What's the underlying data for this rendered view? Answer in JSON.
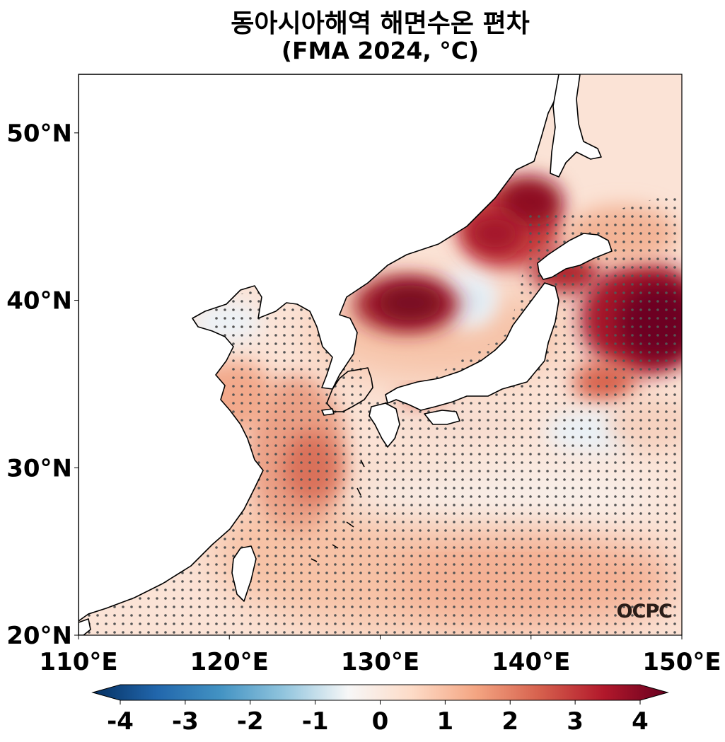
{
  "title": "동아시아해역 해면수온 편차",
  "subtitle": "(FMA 2024, °C)",
  "logo": "OCPC",
  "map": {
    "extent": {
      "lon": [
        110,
        150
      ],
      "lat": [
        20,
        53.5
      ]
    },
    "x_ticks": [
      {
        "value": 110,
        "label": "110°E"
      },
      {
        "value": 120,
        "label": "120°E"
      },
      {
        "value": 130,
        "label": "130°E"
      },
      {
        "value": 140,
        "label": "140°E"
      },
      {
        "value": 150,
        "label": "150°E"
      }
    ],
    "y_ticks": [
      {
        "value": 20,
        "label": "20°N"
      },
      {
        "value": 30,
        "label": "30°N"
      },
      {
        "value": 40,
        "label": "40°N"
      },
      {
        "value": 50,
        "label": "50°N"
      }
    ],
    "stipple_color": "#555555",
    "anomaly_hotspots": [
      {
        "lon": 140.5,
        "lat": 45.8,
        "value": 4.0
      },
      {
        "lon": 137.5,
        "lat": 43.5,
        "value": 3.0
      },
      {
        "lon": 131.5,
        "lat": 39.8,
        "value": 4.0
      },
      {
        "lon": 143.0,
        "lat": 41.5,
        "value": 3.5
      },
      {
        "lon": 147.5,
        "lat": 38.5,
        "value": 4.0
      },
      {
        "lon": 125.5,
        "lat": 30.0,
        "value": 2.3
      },
      {
        "lon": 145.0,
        "lat": 35.0,
        "value": 2.5
      },
      {
        "lon": 136.0,
        "lat": 40.5,
        "value": -0.5
      },
      {
        "lon": 146.0,
        "lat": 31.5,
        "value": -0.3
      }
    ]
  },
  "colorbar": {
    "min": -4,
    "max": 4,
    "ticks": [
      "-4",
      "-3",
      "-2",
      "-1",
      "0",
      "1",
      "2",
      "3",
      "4"
    ],
    "colors": [
      "#053061",
      "#2166ac",
      "#4393c3",
      "#92c5de",
      "#f7f7f7",
      "#fddbc7",
      "#f4a582",
      "#d6604d",
      "#b2182b",
      "#67001f"
    ]
  }
}
